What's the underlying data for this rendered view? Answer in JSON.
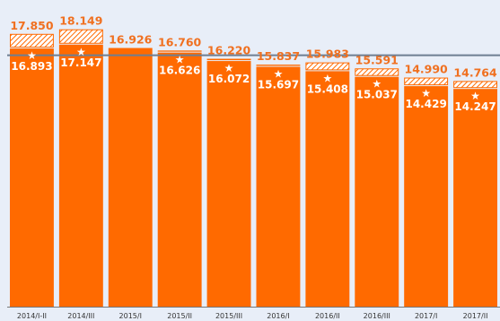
{
  "chart_data": {
    "type": "bar",
    "categories": [
      "2014/I-II",
      "2014/III",
      "2015/I",
      "2015/II",
      "2015/III",
      "2016/I",
      "2016/II",
      "2016/III",
      "2017/I",
      "2017/II"
    ],
    "series": [
      {
        "values": [
          17850,
          18149,
          16926,
          16760,
          16220,
          15837,
          15983,
          15591,
          14990,
          14764
        ]
      },
      {
        "values": [
          16893,
          17147,
          null,
          16626,
          16072,
          15697,
          15408,
          15037,
          14429,
          14247
        ]
      }
    ],
    "top_labels": [
      "17.850",
      "18.149",
      "16.926",
      "16.760",
      "16.220",
      "15.837",
      "15.983",
      "15.591",
      "14.990",
      "14.764"
    ],
    "inner_labels": [
      "16.893",
      "17.147",
      "",
      "16.626",
      "16.072",
      "15.697",
      "15.408",
      "15.037",
      "14.429",
      "14.247"
    ],
    "marker_glyph": "★",
    "reference_line_value": 16450,
    "ylim": [
      0,
      18600
    ],
    "grid": false,
    "title": "",
    "xlabel": "",
    "ylabel": "",
    "colors": {
      "background": "#e8eef8",
      "bar": "#ff6a00",
      "hatch": "#ff6a00",
      "top_label": "#f07020",
      "reference_line": "#6e7f92",
      "inner_label": "#ffffff",
      "axis": "#777777"
    }
  }
}
